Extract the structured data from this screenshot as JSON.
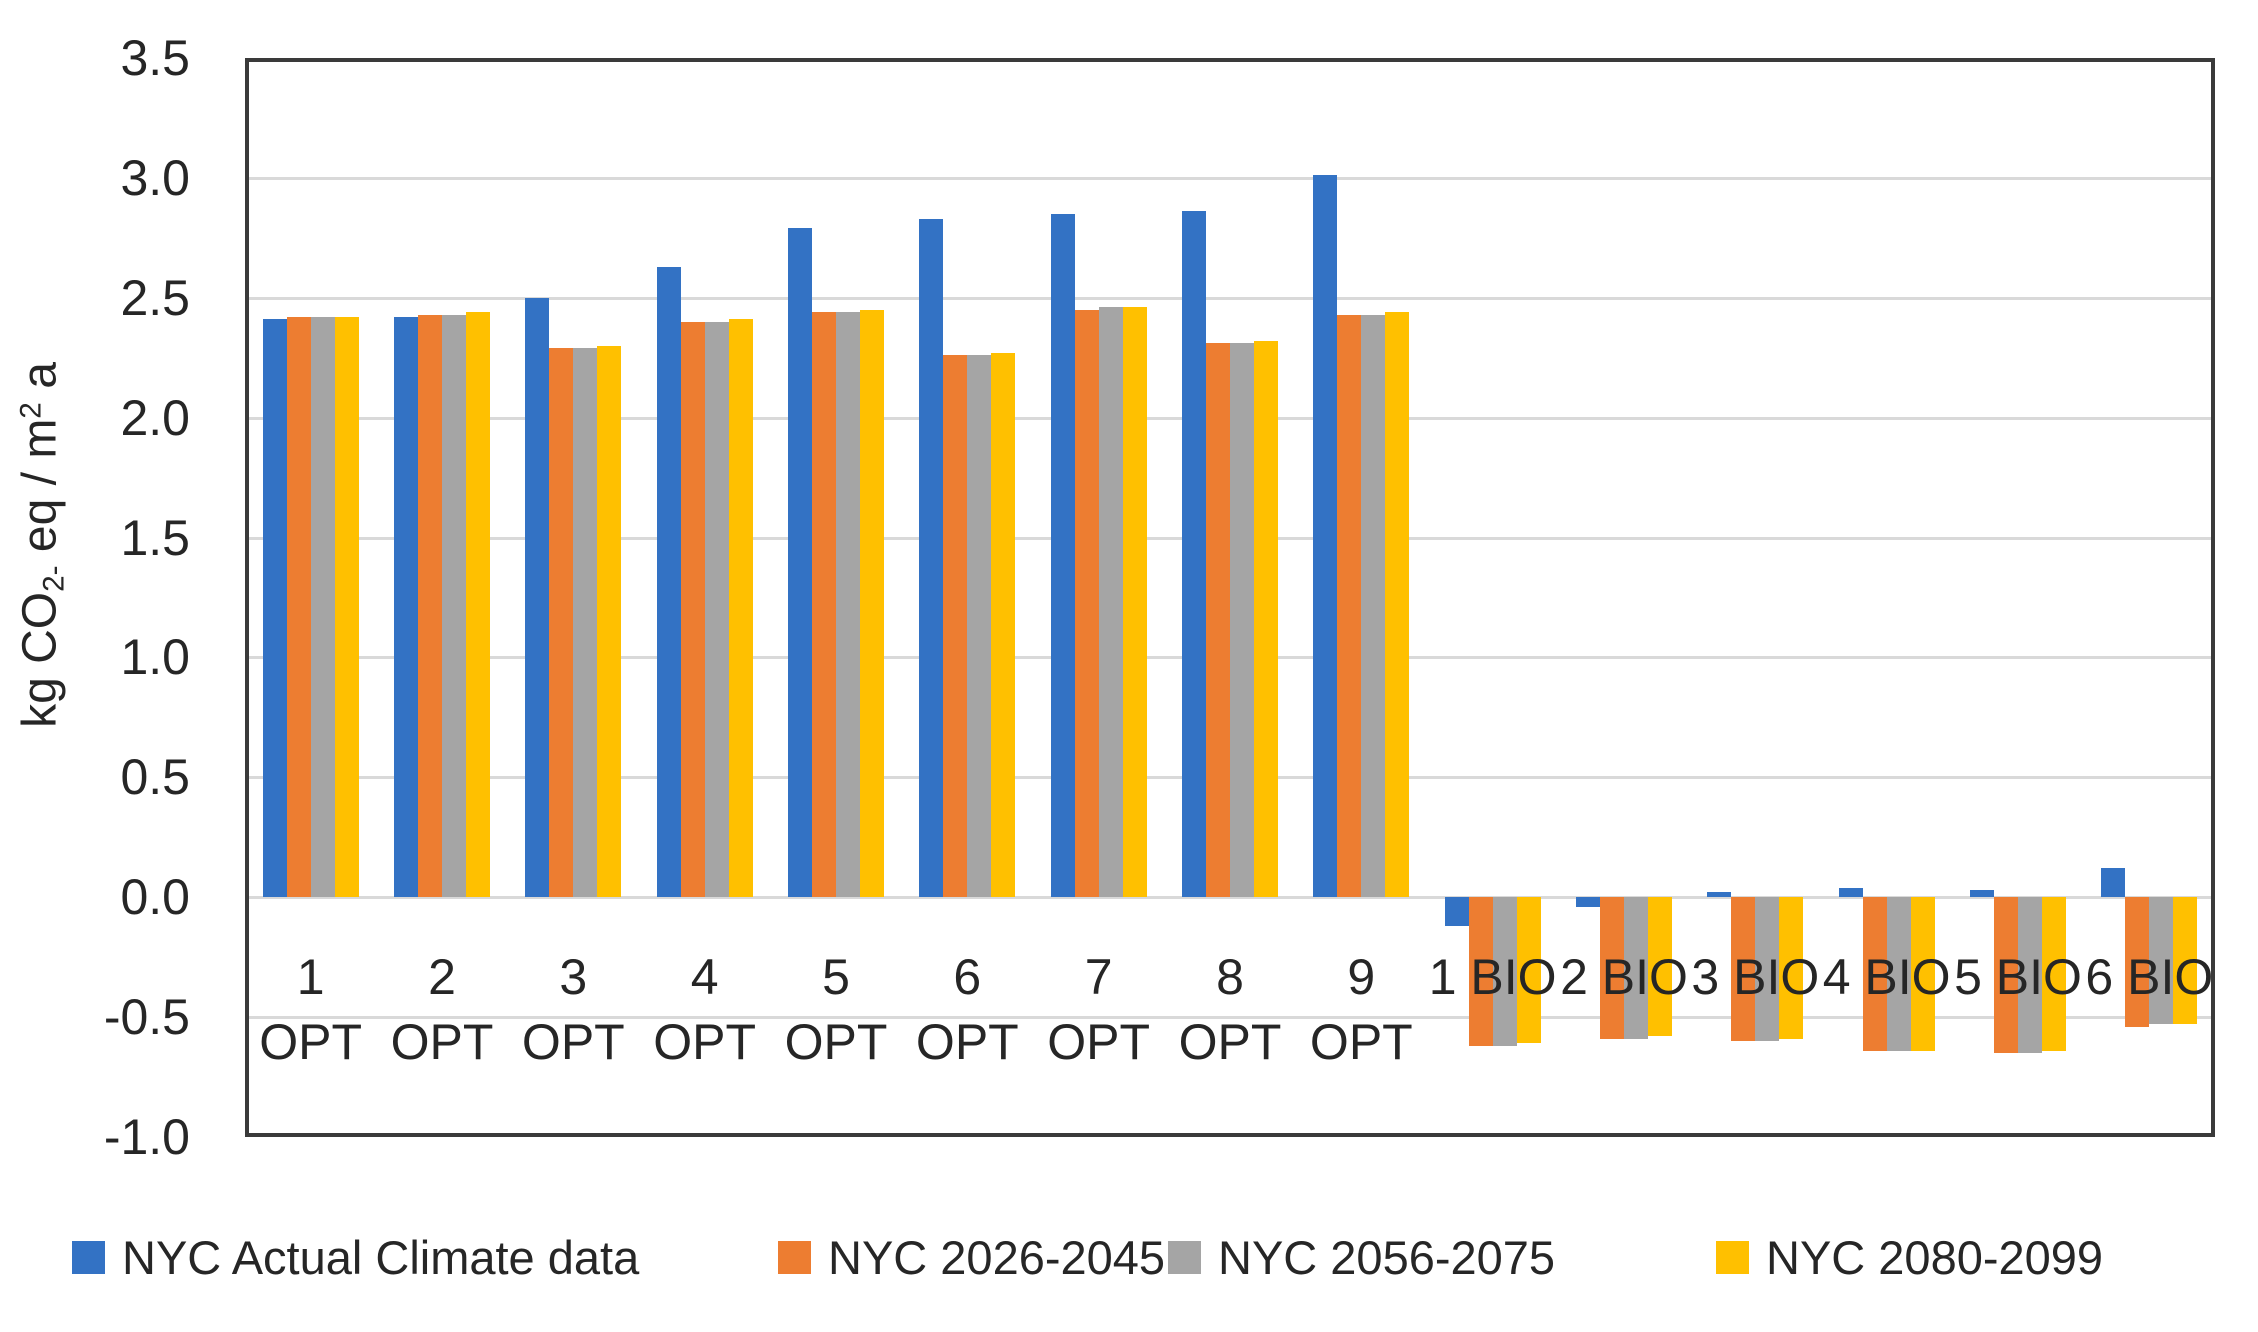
{
  "chart_data": {
    "type": "bar",
    "title": "",
    "xlabel": "",
    "ylabel": "kg CO₂⁻ eq / m² a",
    "ylabel_parts": [
      {
        "text": "kg CO",
        "style": "normal"
      },
      {
        "text": "2-",
        "style": "sub"
      },
      {
        "text": " eq / m",
        "style": "normal"
      },
      {
        "text": "2",
        "style": "sup"
      },
      {
        "text": " a",
        "style": "normal"
      }
    ],
    "categories": [
      "1 OPT",
      "2 OPT",
      "3 OPT",
      "4 OPT",
      "5 OPT",
      "6 OPT",
      "7 OPT",
      "8 OPT",
      "9 OPT",
      "1 BIO",
      "2 BIO",
      "3 BIO",
      "4 BIO",
      "5 BIO",
      "6 BIO"
    ],
    "series": [
      {
        "name": "NYC Actual Climate data",
        "color": "#3372C4",
        "values": [
          2.41,
          2.42,
          2.5,
          2.63,
          2.79,
          2.83,
          2.85,
          2.86,
          3.01,
          -0.12,
          -0.04,
          0.02,
          0.04,
          0.03,
          0.12
        ]
      },
      {
        "name": "NYC 2026-2045",
        "color": "#ED7D31",
        "values": [
          2.42,
          2.43,
          2.29,
          2.4,
          2.44,
          2.26,
          2.45,
          2.31,
          2.43,
          -0.62,
          -0.59,
          -0.6,
          -0.64,
          -0.65,
          -0.54
        ]
      },
      {
        "name": "NYC 2056-2075",
        "color": "#A5A5A5",
        "values": [
          2.42,
          2.43,
          2.29,
          2.4,
          2.44,
          2.26,
          2.46,
          2.31,
          2.43,
          -0.62,
          -0.59,
          -0.6,
          -0.64,
          -0.65,
          -0.53
        ]
      },
      {
        "name": "NYC 2080-2099",
        "color": "#FFC000",
        "values": [
          2.42,
          2.44,
          2.3,
          2.41,
          2.45,
          2.27,
          2.46,
          2.32,
          2.44,
          -0.61,
          -0.58,
          -0.59,
          -0.64,
          -0.64,
          -0.53
        ]
      }
    ],
    "yticks": [
      3.5,
      3.0,
      2.5,
      2.0,
      1.5,
      1.0,
      0.5,
      0.0,
      -0.5,
      -1.0
    ],
    "ylim": [
      -1.0,
      3.5
    ],
    "grid": "horizontal",
    "legend_position": "bottom",
    "colors": {
      "background": "#FFFFFF",
      "axis_border": "#3A3A3A",
      "gridline": "#D9D9D9",
      "text": "#262626"
    }
  }
}
